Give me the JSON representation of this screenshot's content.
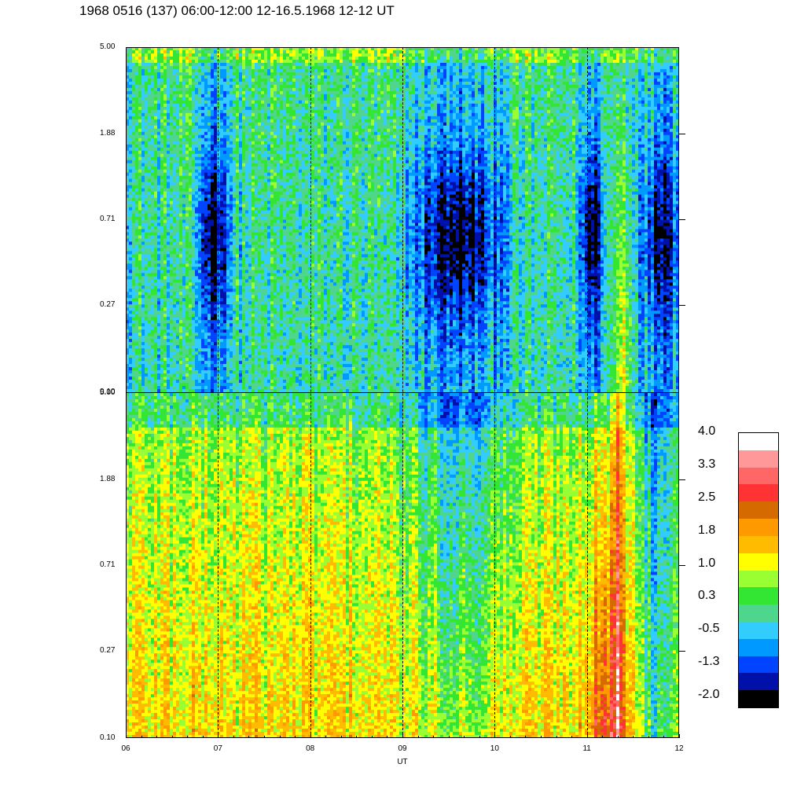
{
  "title": "1968 0516 (137) 06:00-12:00 12-16.5.1968  12-12 UT",
  "chart_data": [
    {
      "type": "heatmap",
      "name": "upper spectrogram",
      "x_range": [
        6,
        12
      ],
      "x_ticks": [
        "06",
        "07",
        "08",
        "09",
        "10",
        "11",
        "12"
      ],
      "xlabel": "",
      "y_scale": "log",
      "y_range": [
        0.1,
        5.0
      ],
      "y_ticks": [
        "0.10",
        "0.27",
        "0.71",
        "1.88",
        "5.00"
      ],
      "value_range": [
        -2.0,
        4.0
      ]
    },
    {
      "type": "heatmap",
      "name": "lower spectrogram",
      "x_range": [
        6,
        12
      ],
      "x_ticks": [
        "06",
        "07",
        "08",
        "09",
        "10",
        "11",
        "12"
      ],
      "xlabel": "UT",
      "y_scale": "log",
      "y_range": [
        0.1,
        5.0
      ],
      "y_ticks": [
        "0.10",
        "0.27",
        "0.71",
        "1.88",
        "5.00"
      ],
      "value_range": [
        -2.0,
        4.0
      ]
    }
  ],
  "colorbar": {
    "labels": [
      "4.0",
      "3.3",
      "2.5",
      "1.8",
      "1.0",
      "0.3",
      "-0.5",
      "-1.3",
      "-2.0"
    ],
    "colors": [
      "#ffffff",
      "#ff9999",
      "#ff6666",
      "#ff3333",
      "#d46a00",
      "#ff9900",
      "#ffbb00",
      "#ffff00",
      "#99ff33",
      "#33e633",
      "#4dd68c",
      "#33ccff",
      "#0099ff",
      "#0044ff",
      "#0011aa",
      "#000000"
    ]
  },
  "x_axis": {
    "ticks": [
      "06",
      "07",
      "08",
      "09",
      "10",
      "11",
      "12"
    ],
    "label": "UT",
    "dashed_hours": [
      7,
      8,
      9,
      10,
      11
    ]
  }
}
